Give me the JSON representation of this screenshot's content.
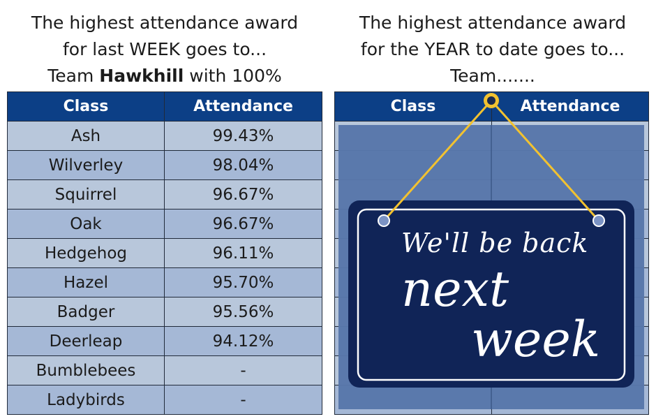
{
  "left": {
    "heading_line1": "The highest attendance award",
    "heading_line2": "for last WEEK goes to...",
    "heading_line3_prefix": "Team ",
    "heading_team": "Hawkhill",
    "heading_line3_suffix": " with 100%",
    "table": {
      "headers": [
        "Class",
        "Attendance"
      ],
      "rows": [
        [
          "Ash",
          "99.43%"
        ],
        [
          "Wilverley",
          "98.04%"
        ],
        [
          "Squirrel",
          "96.67%"
        ],
        [
          "Oak",
          "96.67%"
        ],
        [
          "Hedgehog",
          "96.11%"
        ],
        [
          "Hazel",
          "95.70%"
        ],
        [
          "Badger",
          "95.56%"
        ],
        [
          "Deerleap",
          "94.12%"
        ],
        [
          "Bumblebees",
          "-"
        ],
        [
          "Ladybirds",
          "-"
        ]
      ]
    }
  },
  "right": {
    "heading_line1": "The highest attendance award",
    "heading_line2": "for the YEAR to date goes to...",
    "heading_line3": "Team.......",
    "table": {
      "headers": [
        "Class",
        "Attendance"
      ]
    },
    "sign": {
      "line1": "We'll be back",
      "line2": "next",
      "line3": "week"
    }
  },
  "colors": {
    "header_bg": "#0c3f86",
    "row_light": "#b8c7db",
    "row_dark": "#a5b8d6",
    "sign_bg": "#102457",
    "string": "#f2c230"
  }
}
